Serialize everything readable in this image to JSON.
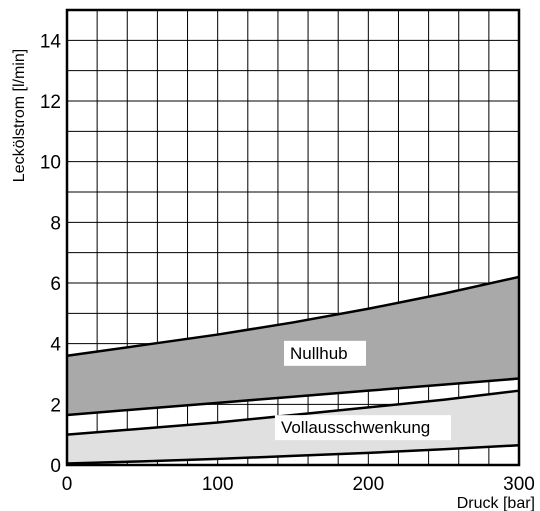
{
  "chart_data": {
    "type": "area",
    "xlabel": "Druck [bar]",
    "ylabel": "Lecköl­strom [l/min]",
    "xlim": [
      0,
      300
    ],
    "ylim": [
      0,
      15
    ],
    "xticks": [
      0,
      100,
      200,
      300
    ],
    "yticks": [
      0,
      2,
      4,
      6,
      8,
      10,
      12,
      14
    ],
    "grid": true,
    "grid_x_step": 20,
    "grid_y_step": 1,
    "regions": [
      {
        "name": "Nullhub",
        "color": "#a9a9a9",
        "x": [
          0,
          50,
          100,
          150,
          200,
          250,
          300
        ],
        "upper": [
          3.6,
          3.95,
          4.3,
          4.7,
          5.15,
          5.65,
          6.2
        ],
        "lower": [
          1.65,
          1.85,
          2.05,
          2.25,
          2.45,
          2.65,
          2.85
        ]
      },
      {
        "name": "Vollausschwenkung",
        "color": "#e0e0e0",
        "x": [
          0,
          50,
          100,
          150,
          200,
          250,
          300
        ],
        "upper": [
          1.0,
          1.2,
          1.4,
          1.65,
          1.9,
          2.15,
          2.45
        ],
        "lower": [
          0.05,
          0.12,
          0.2,
          0.3,
          0.4,
          0.52,
          0.65
        ]
      }
    ]
  }
}
